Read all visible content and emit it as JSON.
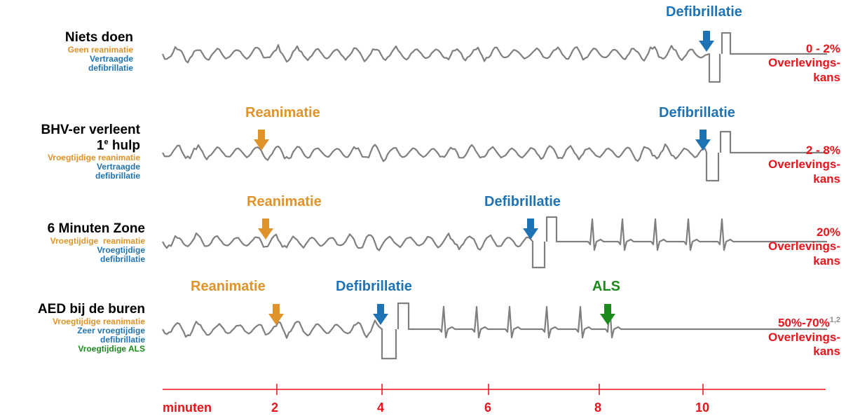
{
  "colors": {
    "orange": "#e0932a",
    "blue": "#1e73b4",
    "green": "#1d8a1d",
    "red": "#e8141b",
    "trace": "#7f7f7f"
  },
  "scenarios": [
    {
      "title": "Niets doen",
      "title_sup": "",
      "title_line2": "",
      "sub": [
        {
          "text": "Geen reanimatie",
          "color": "orange"
        },
        {
          "text": "Vertraagde",
          "color": "blue"
        },
        {
          "text": "defibrillatie",
          "color": "blue"
        }
      ],
      "events": [
        {
          "label": "Defibrillatie",
          "color": "blue",
          "minute": 10.1
        }
      ],
      "result": {
        "pct": "0 - 2%",
        "sup": "",
        "label": [
          "Overlevings-",
          "kans"
        ]
      }
    },
    {
      "title": "BHV-er verleent",
      "title_sup": "e",
      "title_line2": "1",
      "title_line2_tail": " hulp",
      "sub": [
        {
          "text": "Vroegtijdige reanimatie",
          "color": "orange"
        },
        {
          "text": "Vertraagde",
          "color": "blue"
        },
        {
          "text": "defibrillatie",
          "color": "blue"
        }
      ],
      "events": [
        {
          "label": "Reanimatie",
          "color": "orange",
          "minute": 1.6
        },
        {
          "label": "Defibrillatie",
          "color": "blue",
          "minute": 10.1
        }
      ],
      "result": {
        "pct": "2 - 8%",
        "sup": "",
        "label": [
          "Overlevings-",
          "kans"
        ]
      }
    },
    {
      "title": "6 Minuten Zone",
      "title_sup": "",
      "title_line2": "",
      "sub": [
        {
          "text": "Vroegtijdige  reanimatie",
          "color": "orange"
        },
        {
          "text": "Vroegtijdige",
          "color": "blue"
        },
        {
          "text": "defibrillatie",
          "color": "blue"
        }
      ],
      "events": [
        {
          "label": "Reanimatie",
          "color": "orange",
          "minute": 1.6
        },
        {
          "label": "Defibrillatie",
          "color": "blue",
          "minute": 6.7
        }
      ],
      "result": {
        "pct": "20%",
        "sup": "",
        "label": [
          "Overlevings-",
          "kans"
        ]
      }
    },
    {
      "title": "AED bij de buren",
      "title_sup": "",
      "title_line2": "",
      "sub": [
        {
          "text": "Vroegtijdige reanimatie",
          "color": "orange"
        },
        {
          "text": "Zeer vroegtijdige",
          "color": "blue"
        },
        {
          "text": "defibrillatie",
          "color": "blue"
        },
        {
          "text": "Vroegtijdige ALS",
          "color": "green"
        }
      ],
      "events": [
        {
          "label": "Reanimatie",
          "color": "orange",
          "minute": 2.0
        },
        {
          "label": "Defibrillatie",
          "color": "blue",
          "minute": 4.0
        },
        {
          "label": "ALS",
          "color": "green",
          "minute": 8.2
        }
      ],
      "result": {
        "pct": "50%-70%",
        "sup": "1,2",
        "label": [
          "Overlevings-",
          "kans"
        ]
      }
    }
  ],
  "axis": {
    "label": "minuten",
    "ticks": [
      "2",
      "4",
      "6",
      "8",
      "10"
    ]
  }
}
